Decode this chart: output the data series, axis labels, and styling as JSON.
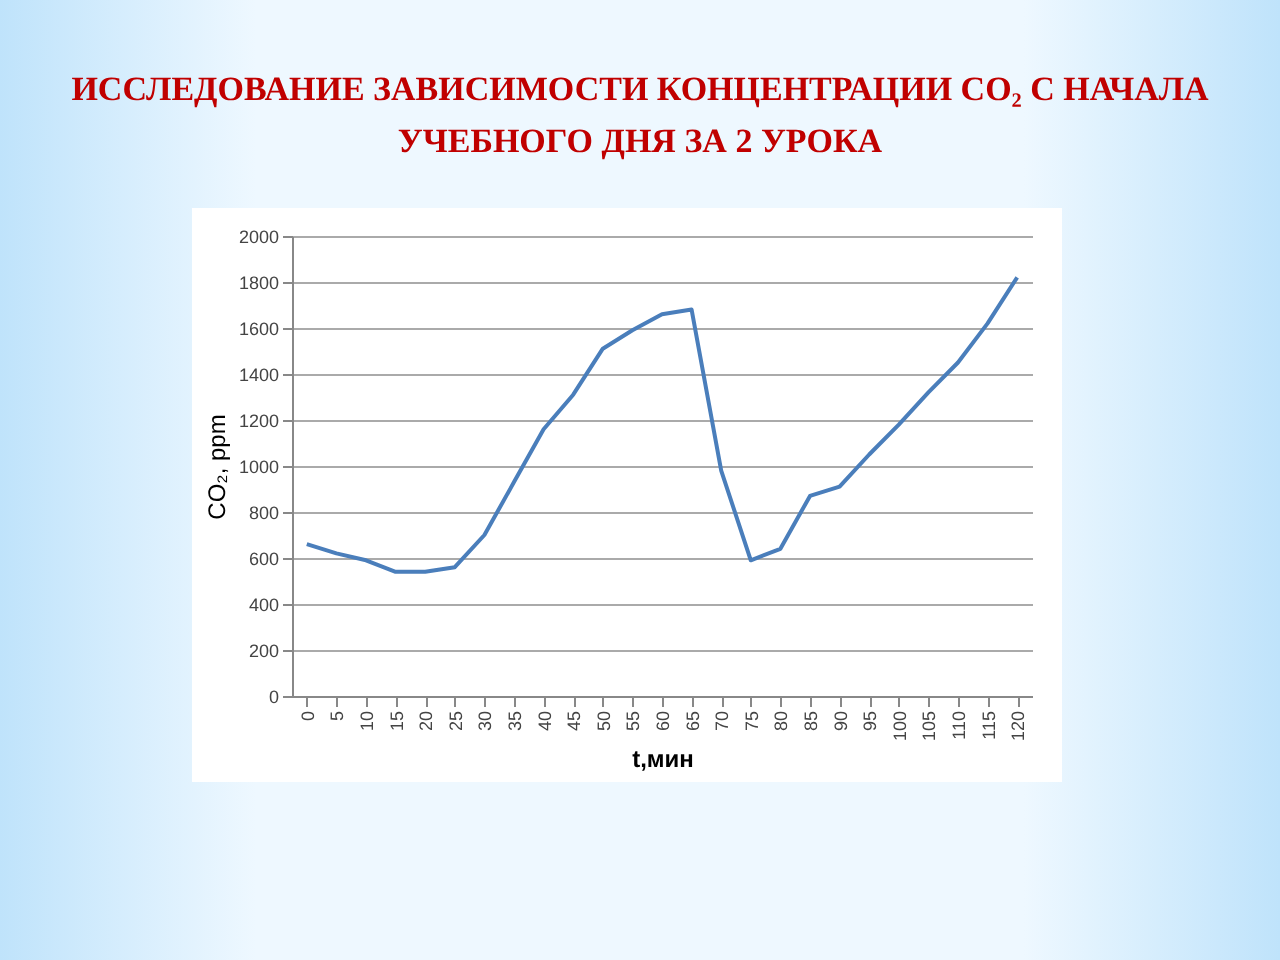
{
  "chart_data": {
    "type": "line",
    "title": "ИССЛЕДОВАНИЕ ЗАВИСИМОСТИ КОНЦЕНТРАЦИИ CO₂ С НАЧАЛА УЧЕБНОГО ДНЯ ЗА 2 УРОКА",
    "xlabel": "t,мин",
    "ylabel": "CO₂, ppm",
    "categories": [
      "0",
      "5",
      "10",
      "15",
      "20",
      "25",
      "30",
      "35",
      "40",
      "45",
      "50",
      "55",
      "60",
      "65",
      "70",
      "75",
      "80",
      "85",
      "90",
      "95",
      "100",
      "105",
      "110",
      "115",
      "120"
    ],
    "series": [
      {
        "color": "#4a7ebb",
        "values": [
          660,
          620,
          590,
          540,
          540,
          560,
          700,
          930,
          1160,
          1310,
          1510,
          1590,
          1660,
          1680,
          980,
          590,
          640,
          870,
          910,
          1050,
          1180,
          1320,
          1450,
          1620,
          1820
        ]
      }
    ],
    "ylim": [
      0,
      2000
    ],
    "yticks": [
      0,
      200,
      400,
      600,
      800,
      1000,
      1200,
      1400,
      1600,
      1800,
      2000
    ],
    "grid": "y"
  }
}
